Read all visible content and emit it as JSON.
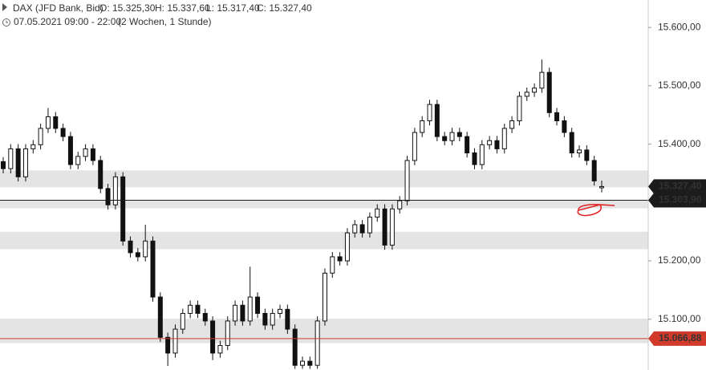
{
  "chart_data": {
    "type": "candlestick",
    "title": "DAX (JFD Bank, Bid)",
    "ohlc_labels": [
      "O: 15.325,30",
      "H: 15.337,60",
      "L: 15.317,40",
      "C: 15.327,40"
    ],
    "subtitle": "07.05.2021 09:00 - 22:00",
    "period": "(2 Wochen, 1 Stunde)",
    "open": [
      15370,
      15358,
      15392,
      15344,
      15392,
      15399,
      15427,
      15447,
      15427,
      15413,
      15365,
      15379,
      15392,
      15372,
      15324,
      15296,
      15344,
      15234,
      15214,
      15207,
      15234,
      15138,
      15069,
      15042,
      15083,
      15110,
      15124,
      15110,
      15097,
      15042,
      15055,
      15097,
      15124,
      15097,
      15138,
      15110,
      15090,
      15110,
      15117,
      15083,
      15021,
      15028,
      15021,
      15097,
      15179,
      15207,
      15200,
      15248,
      15262,
      15248,
      15275,
      15289,
      15227,
      15289,
      15303,
      15372,
      15420,
      15440,
      15468,
      15413,
      15406,
      15420,
      15413,
      15385,
      15365,
      15399,
      15406,
      15392,
      15427,
      15440,
      15482,
      15489,
      15496,
      15523,
      15454,
      15440,
      15420,
      15385,
      15390,
      15372,
      15325.3
    ],
    "high": [
      15378,
      15400,
      15400,
      15400,
      15407,
      15435,
      15462,
      15455,
      15435,
      15421,
      15387,
      15400,
      15400,
      15380,
      15332,
      15352,
      15352,
      15242,
      15222,
      15262,
      15242,
      15146,
      15077,
      15091,
      15118,
      15132,
      15132,
      15118,
      15105,
      15063,
      15105,
      15132,
      15132,
      15190,
      15146,
      15118,
      15118,
      15125,
      15125,
      15091,
      15036,
      15036,
      15105,
      15187,
      15215,
      15215,
      15256,
      15270,
      15270,
      15283,
      15297,
      15297,
      15297,
      15311,
      15380,
      15428,
      15448,
      15476,
      15476,
      15421,
      15428,
      15428,
      15421,
      15393,
      15407,
      15414,
      15414,
      15435,
      15448,
      15490,
      15497,
      15504,
      15545,
      15531,
      15462,
      15448,
      15428,
      15398,
      15398,
      15380,
      15337.6
    ],
    "low": [
      15350,
      15350,
      15336,
      15336,
      15384,
      15391,
      15419,
      15419,
      15405,
      15357,
      15357,
      15371,
      15364,
      15316,
      15288,
      15288,
      15226,
      15206,
      15199,
      15199,
      15130,
      15061,
      15020,
      15034,
      15075,
      15102,
      15102,
      15089,
      15030,
      15034,
      15047,
      15089,
      15089,
      15089,
      15102,
      15082,
      15082,
      15102,
      15075,
      15015,
      15015,
      15015,
      15015,
      15089,
      15171,
      15192,
      15192,
      15240,
      15240,
      15240,
      15267,
      15219,
      15219,
      15281,
      15295,
      15364,
      15412,
      15432,
      15405,
      15398,
      15398,
      15405,
      15377,
      15357,
      15357,
      15391,
      15384,
      15384,
      15419,
      15432,
      15474,
      15481,
      15488,
      15446,
      15432,
      15412,
      15377,
      15377,
      15364,
      15329,
      15317.4
    ],
    "close": [
      15358,
      15392,
      15344,
      15392,
      15399,
      15427,
      15447,
      15427,
      15413,
      15365,
      15379,
      15392,
      15372,
      15324,
      15296,
      15344,
      15234,
      15214,
      15207,
      15234,
      15138,
      15069,
      15042,
      15083,
      15110,
      15124,
      15110,
      15097,
      15042,
      15055,
      15097,
      15124,
      15097,
      15138,
      15110,
      15090,
      15110,
      15117,
      15083,
      15021,
      15028,
      15021,
      15097,
      15179,
      15207,
      15200,
      15248,
      15262,
      15248,
      15275,
      15289,
      15227,
      15289,
      15303,
      15372,
      15420,
      15440,
      15468,
      15413,
      15406,
      15420,
      15413,
      15385,
      15365,
      15399,
      15406,
      15392,
      15427,
      15440,
      15482,
      15489,
      15496,
      15523,
      15454,
      15440,
      15420,
      15385,
      15390,
      15372,
      15337,
      15327.4
    ],
    "ylim": [
      15013,
      15647
    ],
    "yticks": [
      {
        "value": 15600,
        "label": "15.600,00"
      },
      {
        "value": 15500,
        "label": "15.500,00"
      },
      {
        "value": 15400,
        "label": "15.400,00"
      },
      {
        "value": 15200,
        "label": "15.200,00"
      },
      {
        "value": 15100,
        "label": "15.100,00"
      }
    ],
    "zones": [
      {
        "low": 15326,
        "high": 15355
      },
      {
        "low": 15290,
        "high": 15303.9
      },
      {
        "low": 15220,
        "high": 15250
      },
      {
        "low": 15059,
        "high": 15101
      }
    ],
    "price_tags": [
      {
        "value": 15327.4,
        "label": "15.327,40",
        "color": "#1c1c1c",
        "line": false
      },
      {
        "value": 15303.9,
        "label": "15.303,90",
        "color": "#1c1c1c",
        "line": true
      },
      {
        "value": 15066.88,
        "label": "15.066,88",
        "color": "#d23a2c",
        "line": true
      }
    ]
  }
}
